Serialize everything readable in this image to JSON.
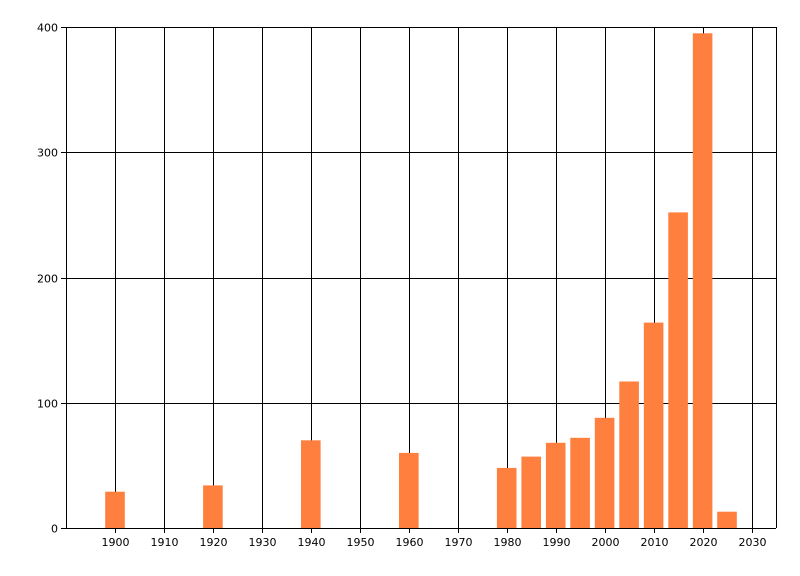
{
  "chart_data": {
    "type": "bar",
    "title": "",
    "xlabel": "",
    "ylabel": "",
    "xlim": [
      1890,
      2035
    ],
    "ylim": [
      0,
      400
    ],
    "grid": true,
    "x_ticks": [
      1900,
      1910,
      1920,
      1930,
      1940,
      1950,
      1960,
      1970,
      1980,
      1990,
      2000,
      2010,
      2020,
      2030
    ],
    "y_ticks": [
      0,
      100,
      200,
      300,
      400
    ],
    "x_tick_labels": [
      "1900",
      "1910",
      "1920",
      "1930",
      "1940",
      "1950",
      "1960",
      "1970",
      "1980",
      "1990",
      "2000",
      "2010",
      "2020",
      "2030"
    ],
    "y_tick_labels": [
      "0",
      "100",
      "200",
      "300",
      "400"
    ],
    "bar_width": 4,
    "bar_color": "#ff7f3f",
    "series": [
      {
        "x": [
          1900,
          1920,
          1940,
          1960,
          1980,
          1985,
          1990,
          1995,
          2000,
          2005,
          2010,
          2015,
          2020,
          2025
        ],
        "values": [
          29,
          34,
          70,
          60,
          48,
          57,
          68,
          72,
          88,
          117,
          164,
          252,
          395,
          13
        ]
      }
    ]
  }
}
